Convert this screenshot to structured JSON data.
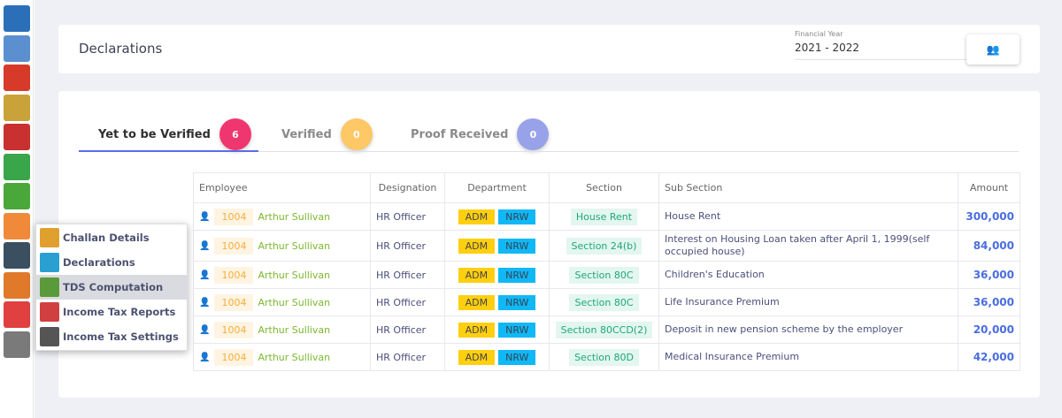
{
  "sidebar": {
    "icons": [
      "monitor-icon",
      "building-icon",
      "user-icon",
      "calendar-grid-icon",
      "clock-icon",
      "calendar-icon",
      "money-icon",
      "tax-calculator-icon",
      "biometric-icon",
      "employee-computer-icon",
      "report-chart-icon",
      "settings-gear-icon"
    ]
  },
  "header": {
    "title": "Declarations",
    "financial_year_label": "Financial Year",
    "financial_year_value": "2021 - 2022",
    "group_button_icon": "users-icon"
  },
  "tabs": [
    {
      "label": "Yet to be Verified",
      "count": "6",
      "color": "#f0366e"
    },
    {
      "label": "Verified",
      "count": "0",
      "color": "#fdc865"
    },
    {
      "label": "Proof Received",
      "count": "0",
      "color": "#98a2e8"
    }
  ],
  "table": {
    "headers": [
      "Employee",
      "Designation",
      "Department",
      "Section",
      "Sub Section",
      "Amount"
    ],
    "rows": [
      {
        "id": "1004",
        "name": "Arthur Sullivan",
        "designation": "HR Officer",
        "dept1": "ADM",
        "dept2": "NRW",
        "section": "House Rent",
        "sub": "House Rent",
        "amount": "300,000"
      },
      {
        "id": "1004",
        "name": "Arthur Sullivan",
        "designation": "HR Officer",
        "dept1": "ADM",
        "dept2": "NRW",
        "section": "Section 24(b)",
        "sub": "Interest on Housing Loan taken after April 1, 1999(self occupied house)",
        "amount": "84,000"
      },
      {
        "id": "1004",
        "name": "Arthur Sullivan",
        "designation": "HR Officer",
        "dept1": "ADM",
        "dept2": "NRW",
        "section": "Section 80C",
        "sub": "Children's Education",
        "amount": "36,000"
      },
      {
        "id": "1004",
        "name": "Arthur Sullivan",
        "designation": "HR Officer",
        "dept1": "ADM",
        "dept2": "NRW",
        "section": "Section 80C",
        "sub": "Life Insurance Premium",
        "amount": "36,000"
      },
      {
        "id": "1004",
        "name": "Arthur Sullivan",
        "designation": "HR Officer",
        "dept1": "ADM",
        "dept2": "NRW",
        "section": "Section 80CCD(2)",
        "sub": "Deposit in new pension scheme by the employer",
        "amount": "20,000"
      },
      {
        "id": "1004",
        "name": "Arthur Sullivan",
        "designation": "HR Officer",
        "dept1": "ADM",
        "dept2": "NRW",
        "section": "Section 80D",
        "sub": "Medical Insurance Premium",
        "amount": "42,000"
      }
    ]
  },
  "popup_menu": {
    "items": [
      {
        "label": "Challan Details"
      },
      {
        "label": "Declarations"
      },
      {
        "label": "TDS Computation",
        "highlighted": true
      },
      {
        "label": "Income Tax Reports"
      },
      {
        "label": "Income Tax Settings"
      }
    ]
  }
}
